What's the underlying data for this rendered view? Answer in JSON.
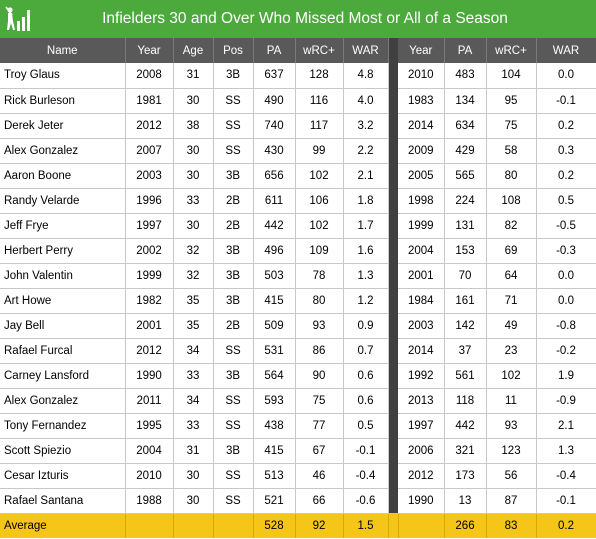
{
  "header": {
    "title": "Infielders 30 and Over Who Missed Most or All of a Season",
    "colors": {
      "header_bg": "#4ca93c",
      "table_header_bg": "#595959",
      "separator": "#404040",
      "average_bg": "#f5c518"
    }
  },
  "table": {
    "columns": [
      "Name",
      "Year",
      "Age",
      "Pos",
      "PA",
      "wRC+",
      "WAR",
      "Year",
      "PA",
      "wRC+",
      "WAR"
    ],
    "rows": [
      [
        "Troy Glaus",
        "2008",
        "31",
        "3B",
        "637",
        "128",
        "4.8",
        "2010",
        "483",
        "104",
        "0.0"
      ],
      [
        "Rick Burleson",
        "1981",
        "30",
        "SS",
        "490",
        "116",
        "4.0",
        "1983",
        "134",
        "95",
        "-0.1"
      ],
      [
        "Derek Jeter",
        "2012",
        "38",
        "SS",
        "740",
        "117",
        "3.2",
        "2014",
        "634",
        "75",
        "0.2"
      ],
      [
        "Alex Gonzalez",
        "2007",
        "30",
        "SS",
        "430",
        "99",
        "2.2",
        "2009",
        "429",
        "58",
        "0.3"
      ],
      [
        "Aaron Boone",
        "2003",
        "30",
        "3B",
        "656",
        "102",
        "2.1",
        "2005",
        "565",
        "80",
        "0.2"
      ],
      [
        "Randy Velarde",
        "1996",
        "33",
        "2B",
        "611",
        "106",
        "1.8",
        "1998",
        "224",
        "108",
        "0.5"
      ],
      [
        "Jeff Frye",
        "1997",
        "30",
        "2B",
        "442",
        "102",
        "1.7",
        "1999",
        "131",
        "82",
        "-0.5"
      ],
      [
        "Herbert Perry",
        "2002",
        "32",
        "3B",
        "496",
        "109",
        "1.6",
        "2004",
        "153",
        "69",
        "-0.3"
      ],
      [
        "John Valentin",
        "1999",
        "32",
        "3B",
        "503",
        "78",
        "1.3",
        "2001",
        "70",
        "64",
        "0.0"
      ],
      [
        "Art Howe",
        "1982",
        "35",
        "3B",
        "415",
        "80",
        "1.2",
        "1984",
        "161",
        "71",
        "0.0"
      ],
      [
        "Jay Bell",
        "2001",
        "35",
        "2B",
        "509",
        "93",
        "0.9",
        "2003",
        "142",
        "49",
        "-0.8"
      ],
      [
        "Rafael Furcal",
        "2012",
        "34",
        "SS",
        "531",
        "86",
        "0.7",
        "2014",
        "37",
        "23",
        "-0.2"
      ],
      [
        "Carney Lansford",
        "1990",
        "33",
        "3B",
        "564",
        "90",
        "0.6",
        "1992",
        "561",
        "102",
        "1.9"
      ],
      [
        "Alex Gonzalez",
        "2011",
        "34",
        "SS",
        "593",
        "75",
        "0.6",
        "2013",
        "118",
        "11",
        "-0.9"
      ],
      [
        "Tony Fernandez",
        "1995",
        "33",
        "SS",
        "438",
        "77",
        "0.5",
        "1997",
        "442",
        "93",
        "2.1"
      ],
      [
        "Scott Spiezio",
        "2004",
        "31",
        "3B",
        "415",
        "67",
        "-0.1",
        "2006",
        "321",
        "123",
        "1.3"
      ],
      [
        "Cesar Izturis",
        "2010",
        "30",
        "SS",
        "513",
        "46",
        "-0.4",
        "2012",
        "173",
        "56",
        "-0.4"
      ],
      [
        "Rafael Santana",
        "1988",
        "30",
        "SS",
        "521",
        "66",
        "-0.6",
        "1990",
        "13",
        "87",
        "-0.1"
      ]
    ],
    "average": [
      "Average",
      "",
      "",
      "",
      "528",
      "92",
      "1.5",
      "",
      "266",
      "83",
      "0.2"
    ]
  }
}
